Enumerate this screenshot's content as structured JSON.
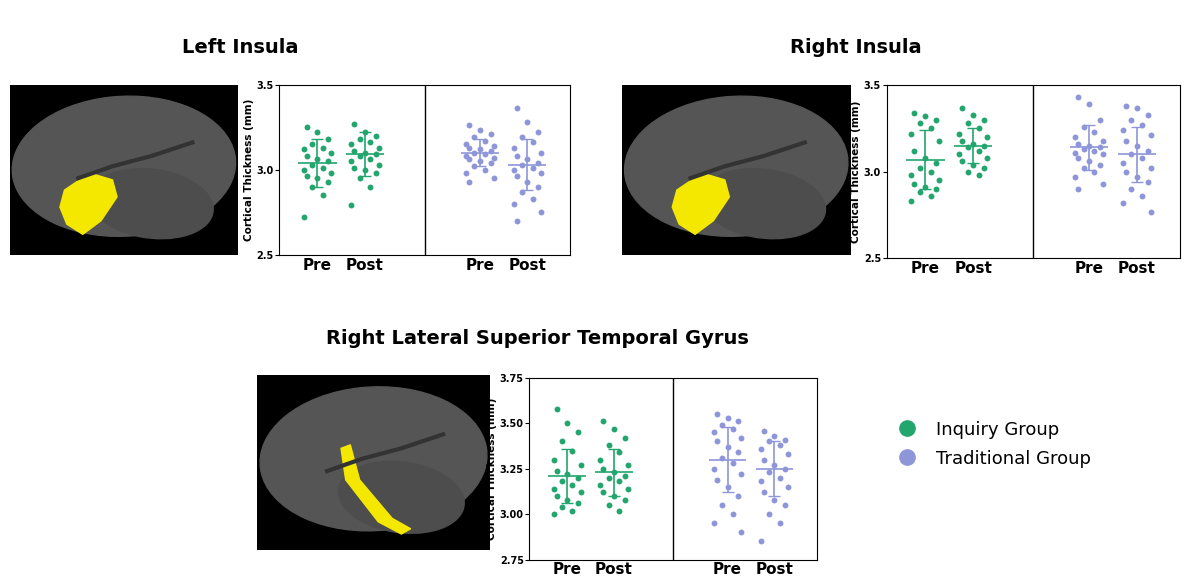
{
  "chart_data": [
    {
      "type": "scatter",
      "title": "Left Insula",
      "ylabel": "Cortical Thickness (mm)",
      "categories": [
        "Pre",
        "Post"
      ],
      "ylim": [
        2.5,
        3.5
      ],
      "yticks": [
        2.5,
        3.0,
        3.5
      ],
      "grid": false,
      "marker": "o",
      "series": [
        {
          "name": "Inquiry Group",
          "color": "#22a66e",
          "values": [
            [
              3.25,
              3.22,
              3.18,
              3.15,
              3.13,
              3.12,
              3.1,
              3.08,
              3.06,
              3.05,
              3.03,
              3.01,
              3.0,
              2.98,
              2.96,
              2.95,
              2.93,
              2.9,
              2.85,
              2.72
            ],
            [
              3.27,
              3.22,
              3.2,
              3.18,
              3.16,
              3.15,
              3.13,
              3.11,
              3.1,
              3.09,
              3.08,
              3.06,
              3.05,
              3.03,
              3.01,
              3.0,
              2.98,
              2.95,
              2.9,
              2.79
            ]
          ],
          "mean": [
            3.04,
            3.09
          ],
          "sd": [
            0.14,
            0.13
          ]
        },
        {
          "name": "Traditional Group",
          "color": "#8e96d9",
          "values": [
            [
              3.26,
              3.23,
              3.21,
              3.19,
              3.17,
              3.15,
              3.14,
              3.13,
              3.12,
              3.11,
              3.1,
              3.09,
              3.08,
              3.07,
              3.06,
              3.05,
              3.04,
              3.02,
              3.0,
              2.98,
              2.95,
              2.93
            ],
            [
              3.36,
              3.28,
              3.22,
              3.19,
              3.16,
              3.13,
              3.1,
              3.08,
              3.06,
              3.04,
              3.03,
              3.01,
              3.0,
              2.98,
              2.96,
              2.93,
              2.9,
              2.87,
              2.83,
              2.8,
              2.75,
              2.7
            ]
          ],
          "mean": [
            3.1,
            3.03
          ],
          "sd": [
            0.08,
            0.15
          ]
        }
      ]
    },
    {
      "type": "scatter",
      "title": "Right Insula",
      "ylabel": "Cortical Thickness (mm)",
      "categories": [
        "Pre",
        "Post"
      ],
      "ylim": [
        2.5,
        3.5
      ],
      "yticks": [
        2.5,
        3.0,
        3.5
      ],
      "grid": false,
      "marker": "o",
      "series": [
        {
          "name": "Inquiry Group",
          "color": "#22a66e",
          "values": [
            [
              3.34,
              3.32,
              3.3,
              3.28,
              3.25,
              3.22,
              3.18,
              3.12,
              3.08,
              3.05,
              3.02,
              3.0,
              2.98,
              2.95,
              2.93,
              2.91,
              2.9,
              2.88,
              2.86,
              2.83
            ],
            [
              3.37,
              3.33,
              3.3,
              3.28,
              3.25,
              3.22,
              3.2,
              3.18,
              3.16,
              3.15,
              3.14,
              3.12,
              3.1,
              3.08,
              3.06,
              3.04,
              3.02,
              3.0,
              2.98
            ]
          ],
          "mean": [
            3.07,
            3.15
          ],
          "sd": [
            0.17,
            0.1
          ]
        },
        {
          "name": "Traditional Group",
          "color": "#8e96d9",
          "values": [
            [
              3.43,
              3.39,
              3.3,
              3.26,
              3.23,
              3.2,
              3.18,
              3.16,
              3.15,
              3.14,
              3.13,
              3.12,
              3.11,
              3.1,
              3.08,
              3.06,
              3.04,
              3.02,
              3.0,
              2.97,
              2.93,
              2.9
            ],
            [
              3.38,
              3.37,
              3.33,
              3.3,
              3.27,
              3.24,
              3.21,
              3.18,
              3.15,
              3.12,
              3.1,
              3.08,
              3.05,
              3.02,
              3.0,
              2.97,
              2.94,
              2.9,
              2.86,
              2.82,
              2.77
            ]
          ],
          "mean": [
            3.14,
            3.1
          ],
          "sd": [
            0.13,
            0.16
          ]
        }
      ]
    },
    {
      "type": "scatter",
      "title": "Right Lateral Superior Temporal Gyrus",
      "ylabel": "Cortical Thickness (mm)",
      "categories": [
        "Pre",
        "Post"
      ],
      "ylim": [
        2.75,
        3.75
      ],
      "yticks": [
        2.75,
        {
          "value": 3.0,
          "label": "3.00"
        },
        3.25,
        {
          "value": 3.5,
          "label": "3.50"
        },
        3.75
      ],
      "grid": false,
      "marker": "o",
      "legend": "lower right",
      "series": [
        {
          "name": "Inquiry Group",
          "color": "#22a66e",
          "values": [
            [
              3.58,
              3.5,
              3.45,
              3.4,
              3.35,
              3.3,
              3.27,
              3.24,
              3.22,
              3.2,
              3.18,
              3.16,
              3.14,
              3.12,
              3.1,
              3.08,
              3.06,
              3.04,
              3.02,
              3.0
            ],
            [
              3.51,
              3.47,
              3.42,
              3.38,
              3.34,
              3.3,
              3.27,
              3.25,
              3.23,
              3.21,
              3.2,
              3.18,
              3.16,
              3.14,
              3.12,
              3.1,
              3.08,
              3.05,
              3.02
            ]
          ],
          "mean": [
            3.21,
            3.23
          ],
          "sd": [
            0.15,
            0.13
          ]
        },
        {
          "name": "Traditional Group",
          "color": "#8e96d9",
          "values": [
            [
              3.55,
              3.53,
              3.51,
              3.49,
              3.47,
              3.45,
              3.42,
              3.4,
              3.37,
              3.34,
              3.31,
              3.28,
              3.25,
              3.22,
              3.19,
              3.15,
              3.1,
              3.05,
              3.0,
              2.95,
              2.9
            ],
            [
              3.46,
              3.43,
              3.41,
              3.4,
              3.38,
              3.36,
              3.33,
              3.3,
              3.27,
              3.25,
              3.23,
              3.2,
              3.18,
              3.15,
              3.12,
              3.08,
              3.05,
              3.0,
              2.95,
              2.85
            ]
          ],
          "mean": [
            3.3,
            3.25
          ],
          "sd": [
            0.18,
            0.15
          ]
        }
      ]
    }
  ]
}
